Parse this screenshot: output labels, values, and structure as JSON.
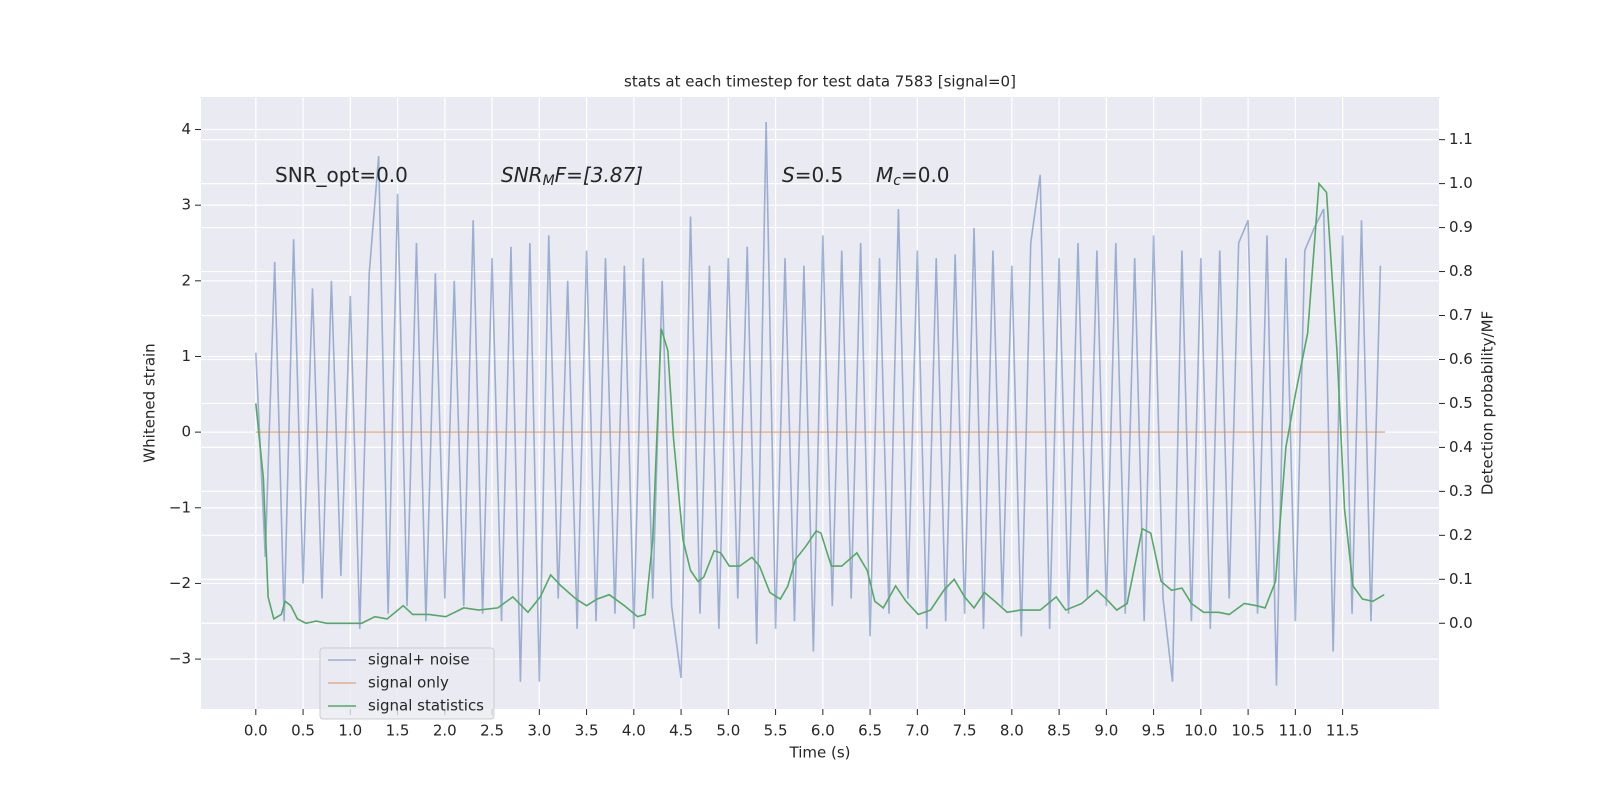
{
  "chart_data": {
    "type": "line",
    "title": "stats at each timestep for test data 7583 [signal=0]",
    "xlabel": "Time (s)",
    "ylabel": "Whitened strain",
    "y2label": "Detection probability/MF",
    "annotations": [
      {
        "base": "SNR_opt=0.0",
        "italic": false
      },
      {
        "base": "SNR",
        "sub": "M",
        "after": "F=[3.87]",
        "italic": true
      },
      {
        "base": "S",
        "after": "=0.5",
        "italic": true
      },
      {
        "base": "M",
        "sub": "c",
        "after": "=0.0",
        "italic": true
      }
    ],
    "xlim": [
      -0.58,
      12.52
    ],
    "ylim": [
      -3.66,
      4.43
    ],
    "y2lim": [
      -0.195,
      1.197
    ],
    "xticks": [
      {
        "value": 0,
        "label": "0.0"
      },
      0.5,
      {
        "value": 1,
        "label": "1.0"
      },
      1.5,
      {
        "value": 2,
        "label": "2.0"
      },
      2.5,
      {
        "value": 3,
        "label": "3.0"
      },
      3.5,
      {
        "value": 4,
        "label": "4.0"
      },
      4.5,
      {
        "value": 5,
        "label": "5.0"
      },
      5.5,
      {
        "value": 6,
        "label": "6.0"
      },
      6.5,
      {
        "value": 7,
        "label": "7.0"
      },
      7.5,
      {
        "value": 8,
        "label": "8.0"
      },
      8.5,
      {
        "value": 9,
        "label": "9.0"
      },
      9.5,
      {
        "value": 10,
        "label": "10.0"
      },
      10.5,
      {
        "value": 11,
        "label": "11.0"
      },
      11.5
    ],
    "yticks": [
      {
        "value": -3,
        "label": "−3"
      },
      {
        "value": -2,
        "label": "−2"
      },
      {
        "value": -1,
        "label": "−1"
      },
      0,
      1,
      2,
      3,
      4
    ],
    "y2ticks": [
      {
        "value": 0,
        "label": "0.0"
      },
      0.1,
      0.2,
      0.3,
      0.4,
      0.5,
      0.6,
      0.7,
      0.8,
      0.9,
      {
        "value": 1,
        "label": "1.0"
      },
      1.1
    ],
    "grid": true,
    "legend": "lower left",
    "background": "#eaeaf2",
    "series": [
      {
        "name": "signal+ noise",
        "color": "#4c72b0",
        "opacity": 0.5,
        "x": [
          0,
          0.1,
          0.2,
          0.3,
          0.4,
          0.5,
          0.6,
          0.7,
          0.8,
          0.9,
          1,
          1.1,
          1.2,
          1.3,
          1.4,
          1.5,
          1.6,
          1.7,
          1.8,
          1.9,
          2,
          2.1,
          2.2,
          2.3,
          2.4,
          2.5,
          2.6,
          2.7,
          2.8,
          2.9,
          3,
          3.1,
          3.2,
          3.3,
          3.4,
          3.5,
          3.6,
          3.7,
          3.8,
          3.9,
          4,
          4.1,
          4.2,
          4.3,
          4.4,
          4.5,
          4.6,
          4.7,
          4.8,
          4.9,
          5,
          5.1,
          5.2,
          5.3,
          5.4,
          5.5,
          5.6,
          5.7,
          5.8,
          5.9,
          6,
          6.1,
          6.2,
          6.3,
          6.4,
          6.5,
          6.6,
          6.7,
          6.8,
          6.9,
          7,
          7.1,
          7.2,
          7.3,
          7.4,
          7.5,
          7.6,
          7.7,
          7.8,
          7.9,
          8,
          8.1,
          8.2,
          8.3,
          8.4,
          8.5,
          8.6,
          8.7,
          8.8,
          8.9,
          9,
          9.1,
          9.2,
          9.3,
          9.4,
          9.5,
          9.6,
          9.7,
          9.8,
          9.9,
          10,
          10.1,
          10.2,
          10.3,
          10.4,
          10.5,
          10.6,
          10.7,
          10.8,
          10.9,
          11,
          11.1,
          11.2,
          11.3,
          11.4,
          11.5,
          11.6,
          11.7,
          11.8,
          11.9
        ],
        "values": [
          1.05,
          -1.65,
          2.25,
          -2.5,
          2.55,
          -2.0,
          1.9,
          -2.2,
          2.0,
          -1.9,
          1.8,
          -2.6,
          2.1,
          3.65,
          -2.4,
          3.15,
          -2.3,
          2.5,
          -2.5,
          2.1,
          -2.2,
          2.0,
          -2.3,
          2.8,
          -2.4,
          2.3,
          -2.5,
          2.45,
          -3.3,
          2.5,
          -3.3,
          2.6,
          -2.2,
          2.0,
          -2.6,
          2.4,
          -2.5,
          2.3,
          -2.4,
          2.2,
          -2.6,
          2.3,
          -2.2,
          2.0,
          -2.3,
          -3.25,
          2.85,
          -2.4,
          2.2,
          -2.6,
          2.3,
          -2.2,
          2.45,
          -2.8,
          4.1,
          -2.6,
          2.3,
          -2.5,
          2.2,
          -2.9,
          2.6,
          -2.3,
          2.4,
          -2.2,
          2.5,
          -2.7,
          2.3,
          -2.4,
          2.95,
          -2.2,
          2.4,
          -2.6,
          2.3,
          -2.5,
          2.35,
          -2.4,
          2.7,
          -2.6,
          2.4,
          -2.3,
          2.2,
          -2.7,
          2.5,
          3.4,
          -2.6,
          2.3,
          -2.4,
          2.5,
          -2.2,
          2.4,
          -2.3,
          2.5,
          -2.4,
          2.3,
          -2.5,
          2.6,
          -2.2,
          -3.3,
          2.4,
          -2.5,
          2.3,
          -2.6,
          2.4,
          -2.2,
          2.5,
          2.8,
          -2.4,
          2.6,
          -3.35,
          2.3,
          -2.5,
          2.4,
          2.7,
          2.95,
          -2.9,
          2.6,
          -2.4,
          2.8,
          -2.5,
          2.2
        ]
      },
      {
        "name": "signal only",
        "color": "#dd8452",
        "opacity": 0.6,
        "x": [
          0,
          11.95
        ],
        "values": [
          0,
          0
        ]
      },
      {
        "name": "signal statistics",
        "color": "#55a868",
        "opacity": 1,
        "axis": "y2",
        "x": [
          0,
          0.08,
          0.13,
          0.19,
          0.27,
          0.31,
          0.37,
          0.44,
          0.53,
          0.64,
          0.75,
          0.96,
          1.12,
          1.26,
          1.39,
          1.56,
          1.66,
          1.83,
          2.01,
          2.2,
          2.36,
          2.56,
          2.72,
          2.88,
          3.01,
          3.12,
          3.23,
          3.39,
          3.5,
          3.61,
          3.74,
          3.9,
          4.04,
          4.12,
          4.2,
          4.29,
          4.36,
          4.42,
          4.52,
          4.6,
          4.68,
          4.74,
          4.85,
          4.92,
          5.01,
          5.12,
          5.25,
          5.33,
          5.44,
          5.55,
          5.63,
          5.71,
          5.82,
          5.93,
          5.98,
          6.09,
          6.2,
          6.36,
          6.47,
          6.55,
          6.64,
          6.77,
          6.88,
          7.01,
          7.14,
          7.28,
          7.39,
          7.5,
          7.6,
          7.71,
          7.82,
          7.95,
          8.09,
          8.2,
          8.3,
          8.47,
          8.57,
          8.74,
          8.9,
          9.0,
          9.11,
          9.22,
          9.38,
          9.47,
          9.58,
          9.69,
          9.8,
          9.9,
          10.03,
          10.19,
          10.3,
          10.46,
          10.59,
          10.68,
          10.79,
          10.9,
          11.0,
          11.13,
          11.25,
          11.33,
          11.44,
          11.52,
          11.61,
          11.71,
          11.82,
          11.94
        ],
        "values": [
          0.5,
          0.33,
          0.06,
          0.01,
          0.02,
          0.05,
          0.04,
          0.01,
          0.0,
          0.005,
          0.0,
          0.0,
          0.0,
          0.015,
          0.01,
          0.04,
          0.02,
          0.02,
          0.015,
          0.035,
          0.03,
          0.035,
          0.06,
          0.025,
          0.06,
          0.11,
          0.085,
          0.055,
          0.04,
          0.055,
          0.065,
          0.04,
          0.015,
          0.02,
          0.19,
          0.67,
          0.62,
          0.42,
          0.19,
          0.12,
          0.095,
          0.105,
          0.165,
          0.16,
          0.13,
          0.13,
          0.15,
          0.13,
          0.07,
          0.055,
          0.085,
          0.145,
          0.175,
          0.21,
          0.205,
          0.13,
          0.13,
          0.16,
          0.12,
          0.05,
          0.035,
          0.085,
          0.05,
          0.02,
          0.03,
          0.075,
          0.1,
          0.06,
          0.035,
          0.07,
          0.05,
          0.025,
          0.03,
          0.03,
          0.03,
          0.06,
          0.03,
          0.045,
          0.075,
          0.055,
          0.03,
          0.045,
          0.215,
          0.205,
          0.095,
          0.075,
          0.08,
          0.045,
          0.025,
          0.025,
          0.02,
          0.045,
          0.04,
          0.035,
          0.095,
          0.4,
          0.52,
          0.66,
          1.0,
          0.98,
          0.62,
          0.26,
          0.085,
          0.055,
          0.05,
          0.065
        ]
      }
    ]
  }
}
